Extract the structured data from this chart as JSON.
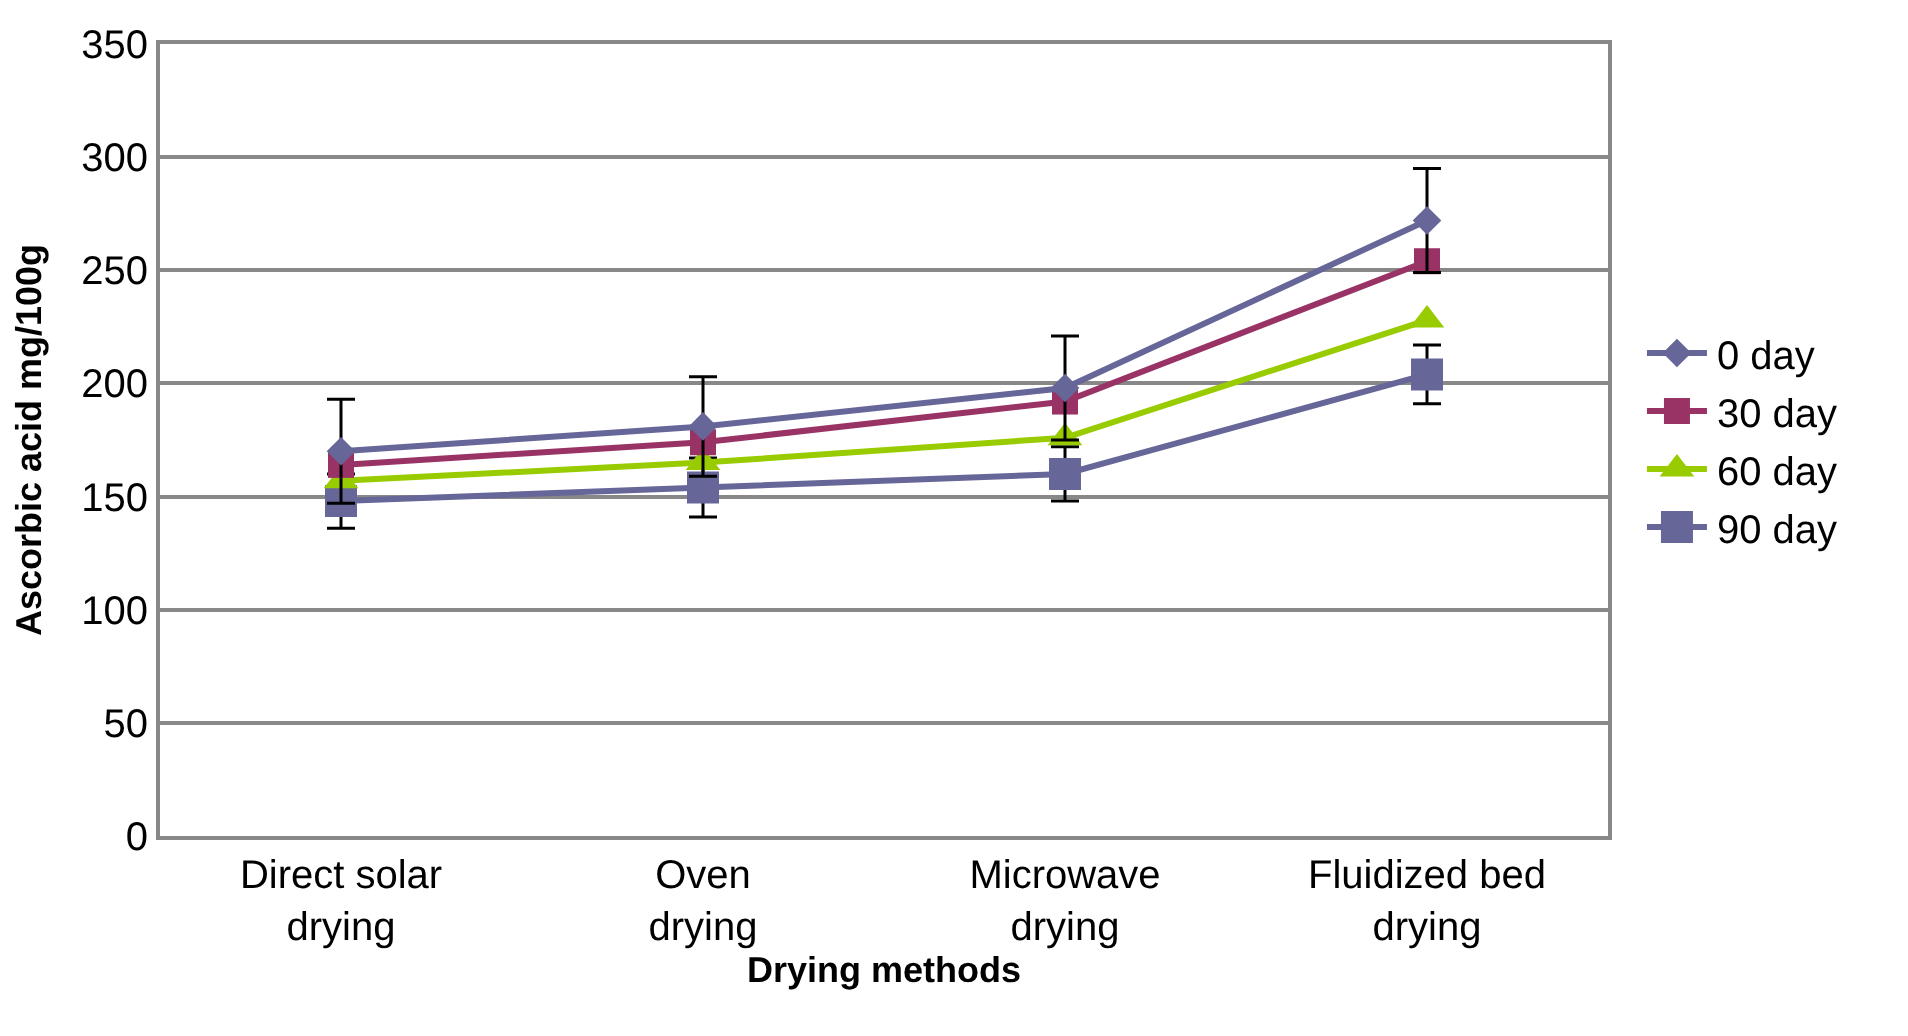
{
  "chart_data": {
    "type": "line",
    "xlabel": "Drying methods",
    "ylabel": "Ascorbic acid mg/100g",
    "categories": [
      "Direct solar drying",
      "Oven drying",
      "Microwave drying",
      "Fluidized bed drying"
    ],
    "series": [
      {
        "name": "0 day",
        "color": "#666699",
        "marker": "diamond",
        "values": [
          170,
          181,
          198,
          272
        ],
        "errors": [
          23,
          22,
          23,
          23
        ]
      },
      {
        "name": "30 day",
        "color": "#993366",
        "marker": "square",
        "values": [
          164,
          174,
          192,
          254
        ]
      },
      {
        "name": "60 day",
        "color": "#99cc00",
        "marker": "triangle",
        "values": [
          157,
          165,
          176,
          228
        ]
      },
      {
        "name": "90 day",
        "color": "#666699",
        "marker": "square",
        "values": [
          148,
          154,
          160,
          204
        ],
        "errors": [
          12,
          13,
          12,
          13
        ]
      }
    ],
    "ylim": [
      0,
      350
    ],
    "yticks": [
      0,
      50,
      100,
      150,
      200,
      250,
      300,
      350
    ],
    "grid": "y",
    "legend": "right"
  }
}
